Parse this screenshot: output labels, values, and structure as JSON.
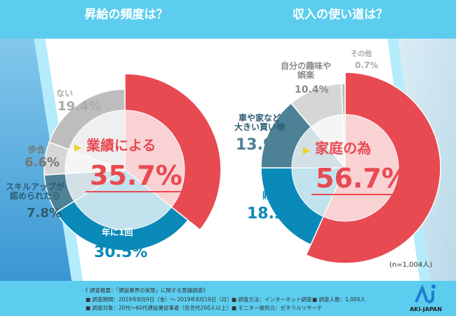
{
  "chart_data": [
    {
      "type": "pie",
      "title": "昇給の頻度は？",
      "slices": [
        {
          "label": "業績による",
          "value": 35.7,
          "display": "35.7%",
          "color": "#e84a52"
        },
        {
          "label": "年に1回",
          "value": 30.5,
          "display": "30.5%",
          "color": "#0a8ab8"
        },
        {
          "label": "スキルアップが認められたら",
          "value": 7.8,
          "display": "7.8%",
          "color": "#4d8196"
        },
        {
          "label": "歩合",
          "value": 6.6,
          "display": "6.6%",
          "color": "#d6d6d6"
        },
        {
          "label": "ない",
          "value": 19.4,
          "display": "19.4%",
          "color": "#bdbdbd"
        }
      ]
    },
    {
      "type": "pie",
      "title": "収入の使い道は？",
      "slices": [
        {
          "label": "家庭の為",
          "value": 56.7,
          "display": "56.7%",
          "color": "#e84a52"
        },
        {
          "label": "貯蓄",
          "value": 18.3,
          "display": "18.3%",
          "color": "#0a8ab8"
        },
        {
          "label": "車や家など大きい買い物",
          "value": 13.9,
          "display": "13.9%",
          "color": "#4d8196"
        },
        {
          "label": "自分の趣味や娯楽",
          "value": 10.4,
          "display": "10.4%",
          "color": "#d6d6d6"
        },
        {
          "label": "その他",
          "value": 0.7,
          "display": "0.7%",
          "color": "#bdbdbd"
        }
      ],
      "note": "(n=1,004人)"
    }
  ],
  "labels": {
    "l_skill1": "スキルアップが",
    "l_skill2": "認められたら",
    "r_car1": "車や家など",
    "r_car2": "大きい買い物",
    "r_hobby1": "自分の趣味や",
    "r_hobby2": "娯楽"
  },
  "footer": {
    "heading": "《 調査概要：「建設業界の実態」に関する意識調査》",
    "items": [
      "■ 調査期間：2019年8月9日（金）〜 2019年8月19日（月）",
      "■ 調査方法：インターネット調査",
      "■ 調査人数：1,004人",
      "■ 調査対象：20代〜60代建設業従事者（各世代200人以上）",
      "■ モニター提供元：ゼネラルリサーチ"
    ]
  },
  "logo": {
    "text": "AKI-JAPAN",
    "mark": "AJ"
  },
  "colors": {
    "banner": "#5ccdee",
    "accent": "#e84a52",
    "blue": "#0a8ab8"
  }
}
